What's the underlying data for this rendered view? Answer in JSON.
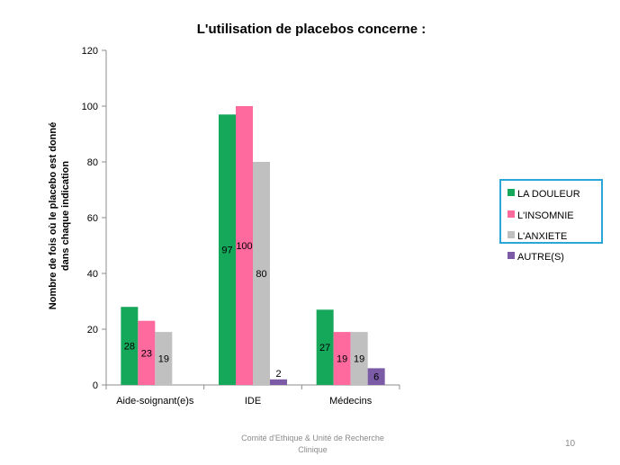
{
  "chart_data": {
    "type": "bar",
    "title": "L'utilisation de placebos concerne :",
    "ylabel_line1": "Nombre de fois où le placebo est donné",
    "ylabel_line2": "dans chaque indication",
    "xlabel": "",
    "ylim": [
      0,
      120
    ],
    "yticks": [
      0,
      20,
      40,
      60,
      80,
      100,
      120
    ],
    "categories": [
      "Aide-soignant(e)s",
      "IDE",
      "Médecins"
    ],
    "series": [
      {
        "name": "LA DOULEUR",
        "color": "#16a85a",
        "values": [
          28,
          97,
          27
        ],
        "labels": [
          "28",
          "97",
          "27"
        ]
      },
      {
        "name": "L'INSOMNIE",
        "color": "#ff6a9e",
        "values": [
          23,
          100,
          19
        ],
        "labels": [
          "23",
          "100",
          "19"
        ]
      },
      {
        "name": "L'ANXIETE",
        "color": "#c0c0c0",
        "values": [
          19,
          80,
          19
        ],
        "labels": [
          "19",
          "80",
          "19"
        ]
      },
      {
        "name": "AUTRE(S)",
        "color": "#7b5aa6",
        "values": [
          0,
          2,
          6
        ],
        "labels": [
          "",
          "2",
          "6"
        ]
      }
    ],
    "legend_placement": "right",
    "grid": false
  },
  "footer": {
    "line1": "Comité d'Ethique & Unité de Recherche",
    "line2": "Clinique"
  },
  "page_number": "10",
  "colors": {
    "legend_border": "#2aa6d9",
    "axis": "#8c8c8c"
  }
}
